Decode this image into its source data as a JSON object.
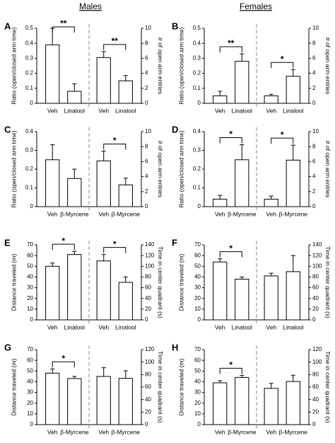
{
  "column_titles": [
    "Males",
    "Females"
  ],
  "chart_data": [
    {
      "type": "bar",
      "panel_label": "A",
      "ylabel": "Ratio (open/closed arm time)",
      "y2label": "# of open arm entries",
      "categories": [
        "Veh",
        "Linalool",
        "Veh",
        "Linalool"
      ],
      "color": "#ffffff",
      "ylim": [
        0,
        0.5
      ],
      "yticks": [
        0,
        0.1,
        0.2,
        0.3,
        0.4,
        0.5
      ],
      "y2lim": [
        0,
        10
      ],
      "y2ticks": [
        0,
        2,
        4,
        6,
        8,
        10
      ],
      "series": [
        {
          "values": [
            0.39,
            0.08,
            null,
            null
          ],
          "errors": [
            0.11,
            0.05,
            null,
            null
          ]
        },
        {
          "axis": "y2",
          "values": [
            null,
            null,
            6.1,
            3.0
          ],
          "errors": [
            null,
            null,
            0.8,
            0.7
          ]
        }
      ],
      "annotations": [
        {
          "label": "**",
          "between": [
            0,
            1
          ]
        },
        {
          "label": "**",
          "between": [
            2,
            3
          ]
        }
      ]
    },
    {
      "type": "bar",
      "panel_label": "B",
      "ylabel": "Ratio (open/closed arm time)",
      "y2label": "# of open arm entries",
      "categories": [
        "Veh",
        "Linalool",
        "Veh",
        "Linalool"
      ],
      "color": "#ffffff",
      "ylim": [
        0,
        0.5
      ],
      "yticks": [
        0,
        0.1,
        0.2,
        0.3,
        0.4,
        0.5
      ],
      "y2lim": [
        0,
        10
      ],
      "y2ticks": [
        0,
        2,
        4,
        6,
        8,
        10
      ],
      "series": [
        {
          "values": [
            0.05,
            0.28,
            null,
            null
          ],
          "errors": [
            0.03,
            0.05,
            null,
            null
          ]
        },
        {
          "axis": "y2",
          "values": [
            null,
            null,
            1.0,
            3.6
          ],
          "errors": [
            null,
            null,
            0.2,
            0.9
          ]
        }
      ],
      "annotations": [
        {
          "label": "**",
          "between": [
            0,
            1
          ]
        },
        {
          "label": "*",
          "between": [
            2,
            3
          ]
        }
      ]
    },
    {
      "type": "bar",
      "panel_label": "C",
      "ylabel": "Ratio (open/closed arm time)",
      "y2label": "# of open arm entries",
      "categories": [
        "Veh",
        "β-Myrcene",
        "Veh",
        "β-Myrcene"
      ],
      "color": "#ffffff",
      "ylim": [
        0,
        0.4
      ],
      "yticks": [
        0,
        0.1,
        0.2,
        0.3,
        0.4
      ],
      "y2lim": [
        0,
        10
      ],
      "y2ticks": [
        0,
        2,
        4,
        6,
        8,
        10
      ],
      "series": [
        {
          "values": [
            0.25,
            0.15,
            null,
            null
          ],
          "errors": [
            0.08,
            0.05,
            null,
            null
          ]
        },
        {
          "axis": "y2",
          "values": [
            null,
            null,
            6.1,
            2.9
          ],
          "errors": [
            null,
            null,
            1.3,
            0.9
          ]
        }
      ],
      "annotations": [
        {
          "label": "*",
          "between": [
            2,
            3
          ]
        }
      ]
    },
    {
      "type": "bar",
      "panel_label": "D",
      "ylabel": "Ratio (open/closed arm time)",
      "y2label": "# of open arm entries",
      "categories": [
        "Veh",
        "β-Myrcene",
        "Veh",
        "β-Myrcene"
      ],
      "color": "#ffffff",
      "ylim": [
        0,
        0.4
      ],
      "yticks": [
        0,
        0.1,
        0.2,
        0.3,
        0.4
      ],
      "y2lim": [
        0,
        10
      ],
      "y2ticks": [
        0,
        2,
        4,
        6,
        8,
        10
      ],
      "series": [
        {
          "values": [
            0.04,
            0.25,
            null,
            null
          ],
          "errors": [
            0.02,
            0.08,
            null,
            null
          ]
        },
        {
          "axis": "y2",
          "values": [
            null,
            null,
            1.0,
            6.2
          ],
          "errors": [
            null,
            null,
            0.4,
            2.0
          ]
        }
      ],
      "annotations": [
        {
          "label": "*",
          "between": [
            0,
            1
          ]
        },
        {
          "label": "*",
          "between": [
            2,
            3
          ]
        }
      ]
    },
    {
      "type": "bar",
      "panel_label": "E",
      "ylabel": "Distance traveled (m)",
      "y2label": "Time in center quadrant (s)",
      "categories": [
        "Veh",
        "Linalool",
        "Veh",
        "Linalool"
      ],
      "color": "#ffffff",
      "ylim": [
        0,
        70
      ],
      "yticks": [
        0,
        10,
        20,
        30,
        40,
        50,
        60,
        70
      ],
      "y2lim": [
        0,
        140
      ],
      "y2ticks": [
        0,
        20,
        40,
        60,
        80,
        100,
        120,
        140
      ],
      "series": [
        {
          "values": [
            50,
            61,
            null,
            null
          ],
          "errors": [
            3,
            3,
            null,
            null
          ]
        },
        {
          "axis": "y2",
          "values": [
            null,
            null,
            110,
            70
          ],
          "errors": [
            null,
            null,
            12,
            10
          ]
        }
      ],
      "annotations": [
        {
          "label": "*",
          "between": [
            0,
            1
          ]
        },
        {
          "label": "*",
          "between": [
            2,
            3
          ]
        }
      ]
    },
    {
      "type": "bar",
      "panel_label": "F",
      "ylabel": "Distance traveled (m)",
      "y2label": "Time in center quadrant (s)",
      "categories": [
        "Veh",
        "Linalool",
        "Veh",
        "Linalool"
      ],
      "color": "#ffffff",
      "ylim": [
        0,
        70
      ],
      "yticks": [
        0,
        10,
        20,
        30,
        40,
        50,
        60,
        70
      ],
      "y2lim": [
        0,
        140
      ],
      "y2ticks": [
        0,
        20,
        40,
        60,
        80,
        100,
        120,
        140
      ],
      "series": [
        {
          "values": [
            54,
            38,
            null,
            null
          ],
          "errors": [
            3,
            2,
            null,
            null
          ]
        },
        {
          "axis": "y2",
          "values": [
            null,
            null,
            82,
            90
          ],
          "errors": [
            null,
            null,
            5,
            30
          ]
        }
      ],
      "annotations": [
        {
          "label": "*",
          "between": [
            0,
            1
          ]
        }
      ]
    },
    {
      "type": "bar",
      "panel_label": "G",
      "ylabel": "Distance traveled (m)",
      "y2label": "Time in center quadrant (s)",
      "categories": [
        "Veh",
        "β-Myrcene",
        "Veh",
        "β-Myrcene"
      ],
      "color": "#ffffff",
      "ylim": [
        0,
        70
      ],
      "yticks": [
        0,
        10,
        20,
        30,
        40,
        50,
        60,
        70
      ],
      "y2lim": [
        0,
        120
      ],
      "y2ticks": [
        0,
        20,
        40,
        60,
        80,
        100,
        120
      ],
      "series": [
        {
          "values": [
            48,
            43,
            null,
            null
          ],
          "errors": [
            4,
            2,
            null,
            null
          ]
        },
        {
          "axis": "y2",
          "values": [
            null,
            null,
            77,
            74
          ],
          "errors": [
            null,
            null,
            14,
            12
          ]
        }
      ],
      "annotations": [
        {
          "label": "*",
          "between": [
            0,
            1
          ]
        }
      ]
    },
    {
      "type": "bar",
      "panel_label": "H",
      "ylabel": "Distance traveled (m)",
      "y2label": "Time in center quadrant (s)",
      "categories": [
        "Veh",
        "β-Myrcene",
        "Veh",
        "β-Myrcene"
      ],
      "color": "#ffffff",
      "ylim": [
        0,
        70
      ],
      "yticks": [
        0,
        10,
        20,
        30,
        40,
        50,
        60,
        70
      ],
      "y2lim": [
        0,
        120
      ],
      "y2ticks": [
        0,
        20,
        40,
        60,
        80,
        100,
        120
      ],
      "series": [
        {
          "values": [
            39,
            44,
            null,
            null
          ],
          "errors": [
            2,
            2,
            null,
            null
          ]
        },
        {
          "axis": "y2",
          "values": [
            null,
            null,
            58,
            69
          ],
          "errors": [
            null,
            null,
            8,
            10
          ]
        }
      ],
      "annotations": [
        {
          "label": "*",
          "between": [
            0,
            1
          ]
        }
      ]
    }
  ]
}
